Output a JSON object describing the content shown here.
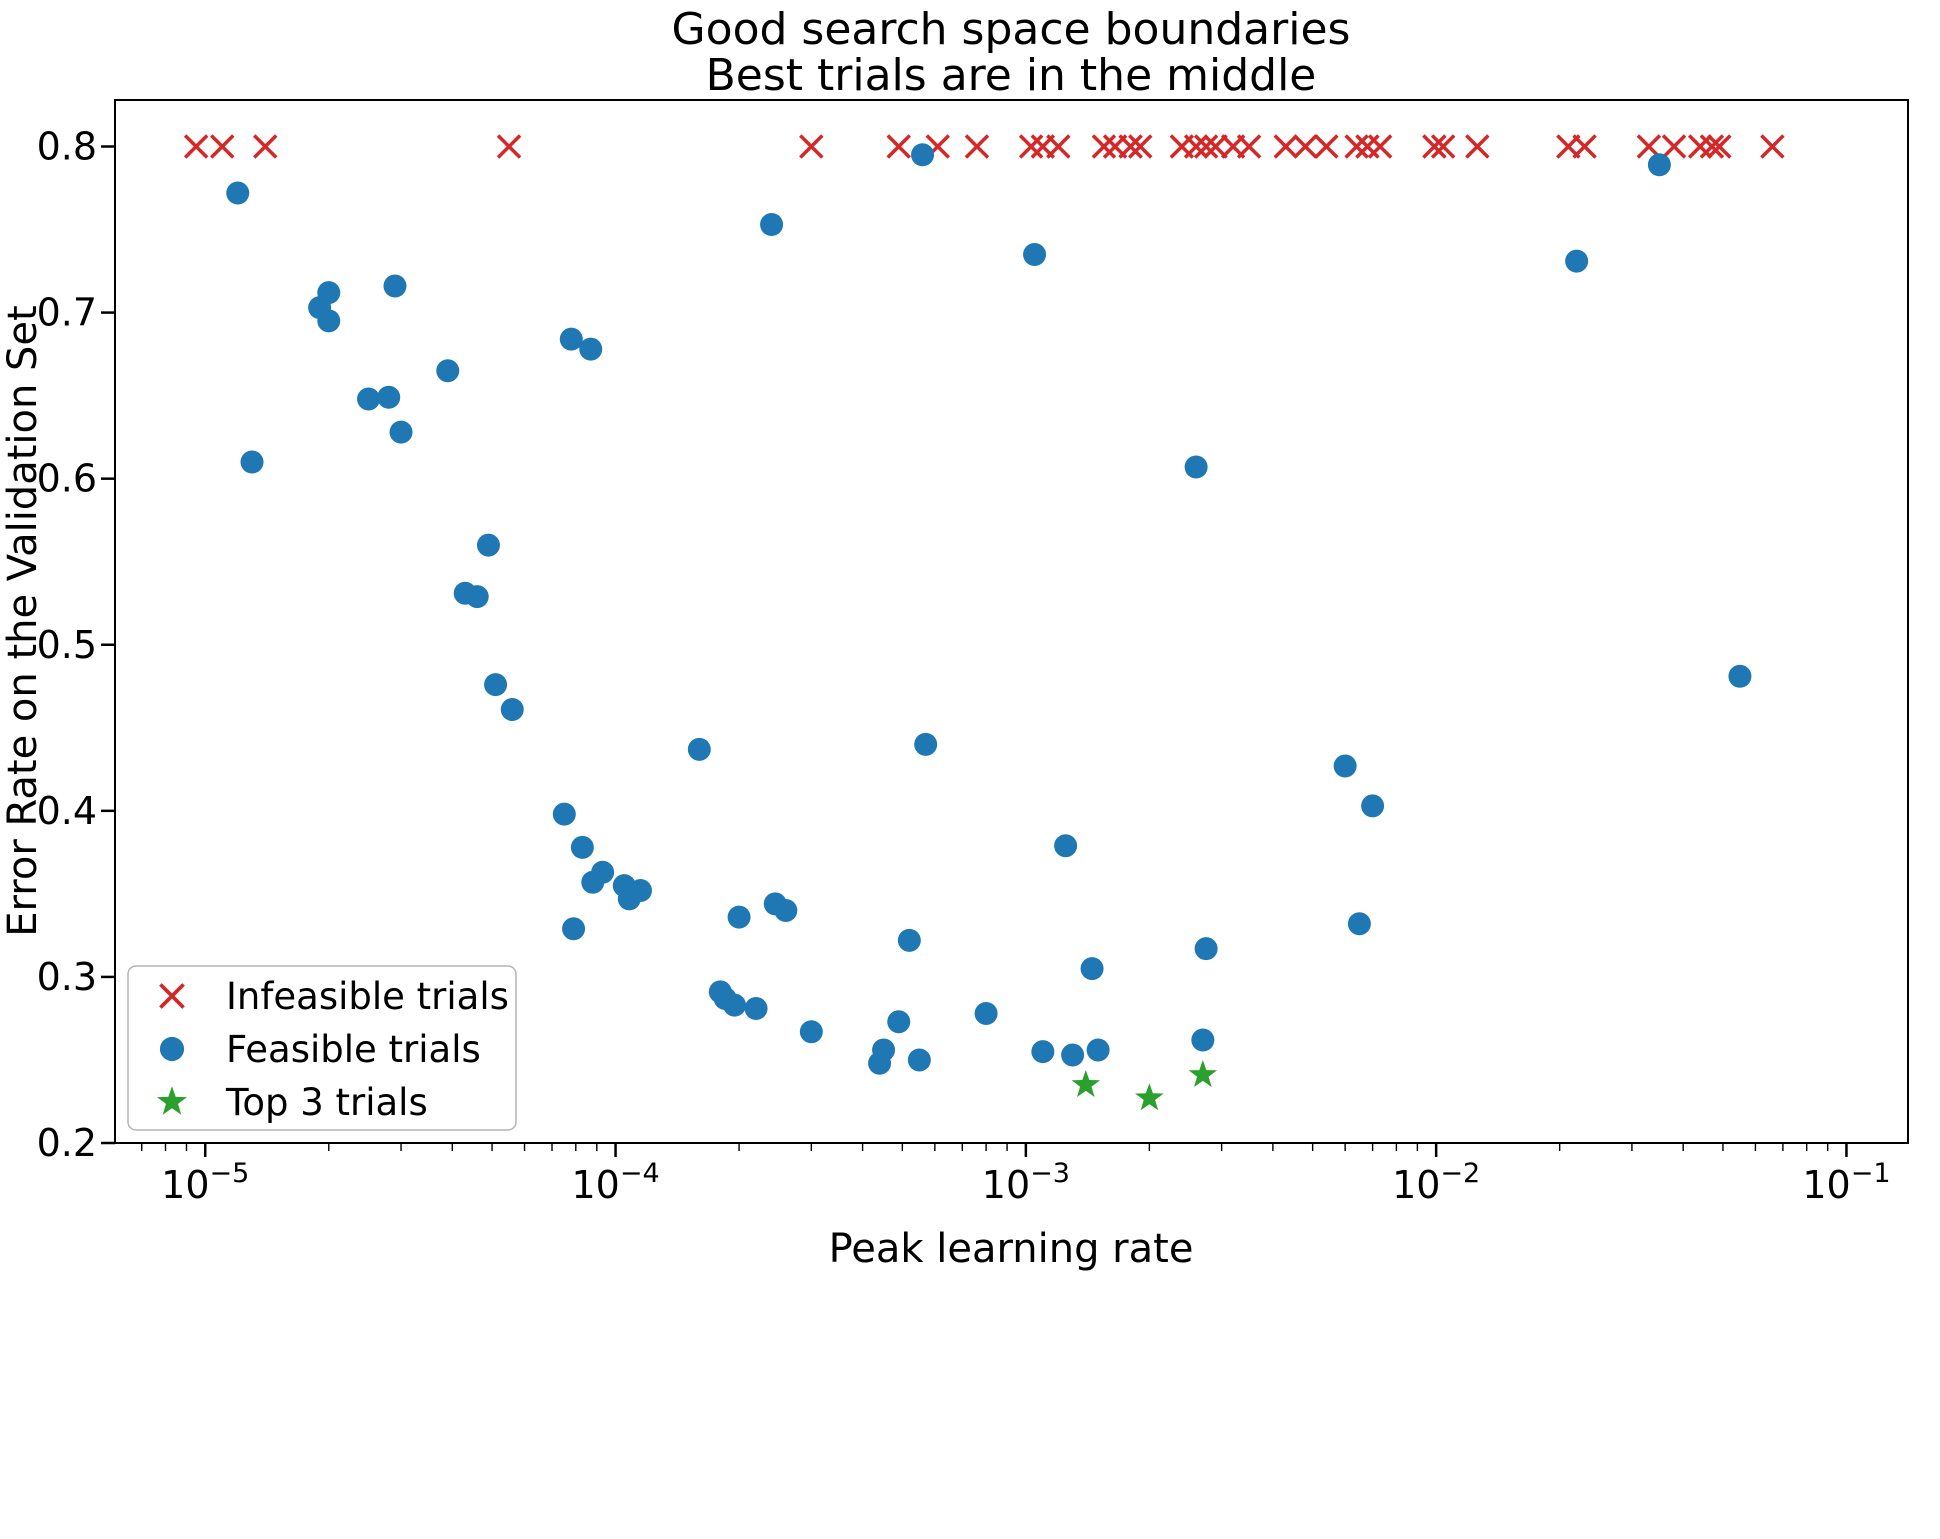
{
  "title_line1": "Good search space boundaries",
  "title_line2": "Best trials are in the middle",
  "chart_data": {
    "type": "scatter",
    "title": "Good search space boundaries\nBest trials are in the middle",
    "xlabel": "Peak learning rate",
    "ylabel": "Error Rate on the Validation Set",
    "x_scale": "log",
    "xlim_log10": [
      -5.22,
      -0.85
    ],
    "ylim": [
      0.2,
      0.828
    ],
    "x_ticks_exponents": [
      -5,
      -4,
      -3,
      -2,
      -1
    ],
    "y_ticks": [
      0.2,
      0.3,
      0.4,
      0.5,
      0.6,
      0.7,
      0.8
    ],
    "grid": false,
    "legend_position": "lower left",
    "series": [
      {
        "name": "Infeasible trials",
        "marker": "x",
        "color": "#d62728",
        "points": [
          [
            9.5e-06,
            0.8
          ],
          [
            1.1e-05,
            0.8
          ],
          [
            1.4e-05,
            0.8
          ],
          [
            5.5e-05,
            0.8
          ],
          [
            0.0003,
            0.8
          ],
          [
            0.00049,
            0.8
          ],
          [
            0.00061,
            0.8
          ],
          [
            0.00076,
            0.8
          ],
          [
            0.00103,
            0.8
          ],
          [
            0.0011,
            0.8
          ],
          [
            0.0012,
            0.8
          ],
          [
            0.00155,
            0.8
          ],
          [
            0.00165,
            0.8
          ],
          [
            0.0018,
            0.8
          ],
          [
            0.0019,
            0.8
          ],
          [
            0.0024,
            0.8
          ],
          [
            0.0026,
            0.8
          ],
          [
            0.00275,
            0.8
          ],
          [
            0.0029,
            0.8
          ],
          [
            0.0032,
            0.8
          ],
          [
            0.0035,
            0.8
          ],
          [
            0.0043,
            0.8
          ],
          [
            0.0048,
            0.8
          ],
          [
            0.0054,
            0.8
          ],
          [
            0.0064,
            0.8
          ],
          [
            0.0068,
            0.8
          ],
          [
            0.0073,
            0.8
          ],
          [
            0.0099,
            0.8
          ],
          [
            0.0104,
            0.8
          ],
          [
            0.0126,
            0.8
          ],
          [
            0.021,
            0.8
          ],
          [
            0.023,
            0.8
          ],
          [
            0.033,
            0.8
          ],
          [
            0.038,
            0.8
          ],
          [
            0.044,
            0.8
          ],
          [
            0.047,
            0.8
          ],
          [
            0.049,
            0.8
          ],
          [
            0.066,
            0.8
          ]
        ]
      },
      {
        "name": "Feasible trials",
        "marker": "circle",
        "color": "#1f77b4",
        "points": [
          [
            1.2e-05,
            0.772
          ],
          [
            1.3e-05,
            0.61
          ],
          [
            1.9e-05,
            0.703
          ],
          [
            2e-05,
            0.712
          ],
          [
            2e-05,
            0.695
          ],
          [
            2.5e-05,
            0.648
          ],
          [
            2.8e-05,
            0.649
          ],
          [
            2.9e-05,
            0.716
          ],
          [
            3e-05,
            0.628
          ],
          [
            3.9e-05,
            0.665
          ],
          [
            4.3e-05,
            0.531
          ],
          [
            4.6e-05,
            0.529
          ],
          [
            4.9e-05,
            0.56
          ],
          [
            5.1e-05,
            0.476
          ],
          [
            5.6e-05,
            0.461
          ],
          [
            7.5e-05,
            0.398
          ],
          [
            7.8e-05,
            0.684
          ],
          [
            8.7e-05,
            0.678
          ],
          [
            7.9e-05,
            0.329
          ],
          [
            8.3e-05,
            0.378
          ],
          [
            8.8e-05,
            0.357
          ],
          [
            9.3e-05,
            0.363
          ],
          [
            0.000105,
            0.355
          ],
          [
            0.000108,
            0.347
          ],
          [
            0.000115,
            0.352
          ],
          [
            0.00016,
            0.437
          ],
          [
            0.00018,
            0.291
          ],
          [
            0.000185,
            0.287
          ],
          [
            0.000195,
            0.283
          ],
          [
            0.0002,
            0.336
          ],
          [
            0.00022,
            0.281
          ],
          [
            0.00024,
            0.753
          ],
          [
            0.000245,
            0.344
          ],
          [
            0.00026,
            0.34
          ],
          [
            0.0003,
            0.267
          ],
          [
            0.00044,
            0.248
          ],
          [
            0.00045,
            0.256
          ],
          [
            0.00049,
            0.273
          ],
          [
            0.00052,
            0.322
          ],
          [
            0.00055,
            0.25
          ],
          [
            0.00056,
            0.795
          ],
          [
            0.00057,
            0.44
          ],
          [
            0.0008,
            0.278
          ],
          [
            0.00105,
            0.735
          ],
          [
            0.0011,
            0.255
          ],
          [
            0.00125,
            0.379
          ],
          [
            0.0013,
            0.253
          ],
          [
            0.00145,
            0.305
          ],
          [
            0.0015,
            0.256
          ],
          [
            0.0026,
            0.607
          ],
          [
            0.0027,
            0.262
          ],
          [
            0.00275,
            0.317
          ],
          [
            0.006,
            0.427
          ],
          [
            0.0065,
            0.332
          ],
          [
            0.007,
            0.403
          ],
          [
            0.022,
            0.731
          ],
          [
            0.035,
            0.789
          ],
          [
            0.055,
            0.481
          ]
        ]
      },
      {
        "name": "Top 3 trials",
        "marker": "star",
        "color": "#2ca02c",
        "points": [
          [
            0.0014,
            0.235
          ],
          [
            0.002,
            0.227
          ],
          [
            0.0027,
            0.241
          ]
        ]
      }
    ]
  }
}
